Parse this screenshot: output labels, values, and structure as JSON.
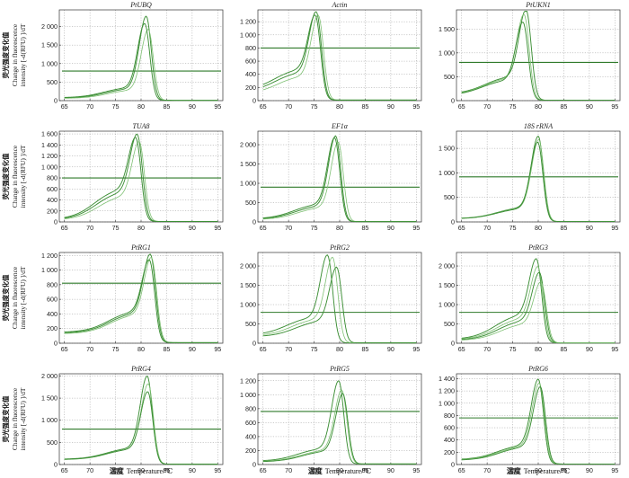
{
  "chart_data": {
    "type": "line",
    "row_ylabel": {
      "cn": "荧光强度变化值",
      "en1": "Change in fluorescence",
      "en2": "intensity [-d(RFU) ]/dT"
    },
    "xlabel": {
      "cn": "温度",
      "en": "Temperature/℃"
    },
    "x_ticks": [
      65,
      70,
      75,
      80,
      85,
      90,
      95
    ],
    "xlim": [
      64,
      96
    ],
    "panels": [
      {
        "title": "PtUBQ",
        "ylim": [
          0,
          2450
        ],
        "yticks": [
          0,
          500,
          1000,
          1500,
          2000
        ],
        "threshold": 800,
        "melt_peaks": [
          {
            "tm": 81.0,
            "peak": 2250,
            "base": 60,
            "shoulder": 280
          },
          {
            "tm": 81.4,
            "peak": 1900,
            "base": 50,
            "shoulder": 250
          },
          {
            "tm": 80.7,
            "peak": 2050,
            "base": 70,
            "shoulder": 300
          }
        ]
      },
      {
        "title": "Actin",
        "ylim": [
          0,
          1380
        ],
        "yticks": [
          0,
          200,
          400,
          600,
          800,
          1000,
          1200
        ],
        "threshold": 800,
        "melt_peaks": [
          {
            "tm": 75.4,
            "peak": 1300,
            "base": 120,
            "shoulder": 330
          },
          {
            "tm": 75.8,
            "peak": 1260,
            "base": 90,
            "shoulder": 300
          },
          {
            "tm": 75.2,
            "peak": 1240,
            "base": 140,
            "shoulder": 360
          }
        ]
      },
      {
        "title": "PtUKN1",
        "ylim": [
          0,
          1900
        ],
        "yticks": [
          0,
          500,
          1000,
          1500
        ],
        "threshold": 800,
        "melt_peaks": [
          {
            "tm": 77.6,
            "peak": 1850,
            "base": 130,
            "shoulder": 400
          },
          {
            "tm": 77.2,
            "peak": 1760,
            "base": 110,
            "shoulder": 380
          },
          {
            "tm": 77.0,
            "peak": 1600,
            "base": 100,
            "shoulder": 350
          }
        ]
      },
      {
        "title": "TUA8",
        "ylim": [
          0,
          1650
        ],
        "yticks": [
          0,
          200,
          400,
          600,
          800,
          1000,
          1200,
          1400,
          1600
        ],
        "threshold": 800,
        "melt_peaks": [
          {
            "tm": 79.2,
            "peak": 1580,
            "base": 30,
            "shoulder": 550
          },
          {
            "tm": 79.6,
            "peak": 1450,
            "base": 25,
            "shoulder": 480
          },
          {
            "tm": 78.9,
            "peak": 1520,
            "base": 35,
            "shoulder": 600
          }
        ]
      },
      {
        "title": "EF1α",
        "ylim": [
          0,
          2350
        ],
        "yticks": [
          0,
          500,
          1000,
          1500,
          2000
        ],
        "threshold": 900,
        "melt_peaks": [
          {
            "tm": 79.2,
            "peak": 2200,
            "base": 60,
            "shoulder": 380
          },
          {
            "tm": 79.7,
            "peak": 2050,
            "base": 50,
            "shoulder": 350
          },
          {
            "tm": 79.0,
            "peak": 2150,
            "base": 70,
            "shoulder": 420
          }
        ]
      },
      {
        "title": "18S rRNA",
        "ylim": [
          0,
          1850
        ],
        "yticks": [
          0,
          500,
          1000,
          1500
        ],
        "threshold": 920,
        "melt_peaks": [
          {
            "tm": 80.0,
            "peak": 1720,
            "base": 60,
            "shoulder": 250
          },
          {
            "tm": 80.1,
            "peak": 1650,
            "base": 60,
            "shoulder": 240
          },
          {
            "tm": 79.9,
            "peak": 1600,
            "base": 55,
            "shoulder": 230
          }
        ]
      },
      {
        "title": "PtRG1",
        "ylim": [
          0,
          1240
        ],
        "yticks": [
          0,
          200,
          400,
          600,
          800,
          1000,
          1200
        ],
        "threshold": 820,
        "melt_peaks": [
          {
            "tm": 81.8,
            "peak": 1160,
            "base": 130,
            "shoulder": 300
          },
          {
            "tm": 82.0,
            "peak": 1120,
            "base": 120,
            "shoulder": 290
          },
          {
            "tm": 81.6,
            "peak": 1080,
            "base": 140,
            "shoulder": 310
          }
        ]
      },
      {
        "title": "PtRG2",
        "ylim": [
          0,
          2350
        ],
        "yticks": [
          0,
          500,
          1000,
          1500,
          2000
        ],
        "threshold": 800,
        "melt_peaks": [
          {
            "tm": 77.6,
            "peak": 2200,
            "base": 200,
            "shoulder": 500
          },
          {
            "tm": 78.6,
            "peak": 2150,
            "base": 180,
            "shoulder": 480
          },
          {
            "tm": 79.4,
            "peak": 1900,
            "base": 160,
            "shoulder": 450
          }
        ]
      },
      {
        "title": "PtRG3",
        "ylim": [
          0,
          2350
        ],
        "yticks": [
          0,
          500,
          1000,
          1500,
          2000
        ],
        "threshold": 800,
        "melt_peaks": [
          {
            "tm": 79.6,
            "peak": 2150,
            "base": 90,
            "shoulder": 700
          },
          {
            "tm": 79.9,
            "peak": 1950,
            "base": 80,
            "shoulder": 620
          },
          {
            "tm": 80.2,
            "peak": 1800,
            "base": 70,
            "shoulder": 560
          },
          {
            "tm": 80.5,
            "peak": 1560,
            "base": 60,
            "shoulder": 480
          }
        ]
      },
      {
        "title": "PtRG4",
        "ylim": [
          0,
          2050
        ],
        "yticks": [
          0,
          500,
          1000,
          1500,
          2000
        ],
        "threshold": 800,
        "melt_peaks": [
          {
            "tm": 81.2,
            "peak": 1950,
            "base": 110,
            "shoulder": 280
          },
          {
            "tm": 81.4,
            "peak": 1780,
            "base": 100,
            "shoulder": 270
          },
          {
            "tm": 81.3,
            "peak": 1600,
            "base": 105,
            "shoulder": 260
          }
        ]
      },
      {
        "title": "PtRG5",
        "ylim": [
          0,
          1300
        ],
        "yticks": [
          0,
          200,
          400,
          600,
          800,
          1000,
          1200
        ],
        "threshold": 760,
        "melt_peaks": [
          {
            "tm": 79.8,
            "peak": 1180,
            "base": 40,
            "shoulder": 200
          },
          {
            "tm": 80.4,
            "peak": 1050,
            "base": 35,
            "shoulder": 180
          },
          {
            "tm": 80.6,
            "peak": 1000,
            "base": 30,
            "shoulder": 170
          }
        ]
      },
      {
        "title": "PtRG6",
        "ylim": [
          0,
          1480
        ],
        "yticks": [
          0,
          200,
          400,
          600,
          800,
          1000,
          1200,
          1400
        ],
        "threshold": 760,
        "melt_peaks": [
          {
            "tm": 80.0,
            "peak": 1360,
            "base": 70,
            "shoulder": 260
          },
          {
            "tm": 80.2,
            "peak": 1300,
            "base": 65,
            "shoulder": 250
          },
          {
            "tm": 80.4,
            "peak": 1240,
            "base": 60,
            "shoulder": 240
          }
        ]
      }
    ]
  }
}
